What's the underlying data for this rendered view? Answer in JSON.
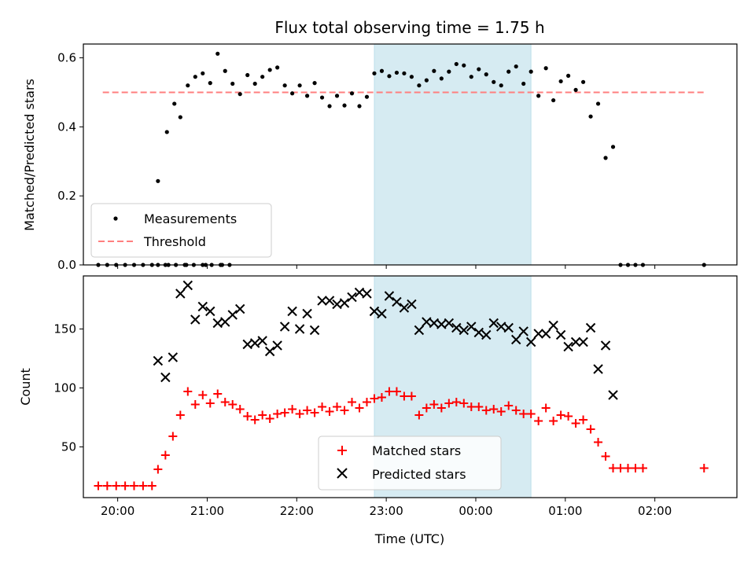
{
  "chart_data": [
    {
      "type": "scatter",
      "title": "Flux total observing time = 1.75 h",
      "xlabel": "",
      "ylabel": "Matched/Predicted stars",
      "xlim": [
        "19:37",
        "02:55"
      ],
      "ylim": [
        0,
        0.64
      ],
      "yticks": [
        0.0,
        0.2,
        0.4,
        0.6
      ],
      "ytick_labels": [
        "0.0",
        "0.2",
        "0.4",
        "0.6"
      ],
      "shaded_span": [
        "22:52",
        "00:37"
      ],
      "threshold": {
        "y": 0.5,
        "x_range": [
          "19:50",
          "02:33"
        ],
        "color": "#ff7f7f"
      },
      "legend": {
        "placement": "lower-left",
        "entries": [
          "Measurements",
          "Threshold"
        ]
      },
      "series": [
        {
          "name": "Measurements",
          "marker": "dot",
          "color": "#000000",
          "points": [
            [
              "19:47",
              0.0
            ],
            [
              "19:53",
              0.0
            ],
            [
              "19:59",
              0.0
            ],
            [
              "20:05",
              0.0
            ],
            [
              "20:11",
              0.0
            ],
            [
              "20:17",
              0.0
            ],
            [
              "20:23",
              0.0
            ],
            [
              "20:27",
              0.0
            ],
            [
              "20:32",
              0.0
            ],
            [
              "20:34",
              0.0
            ],
            [
              "20:39",
              0.0
            ],
            [
              "20:45",
              0.0
            ],
            [
              "20:46",
              0.0
            ],
            [
              "20:51",
              0.0
            ],
            [
              "20:57",
              0.0
            ],
            [
              "20:59",
              0.0
            ],
            [
              "21:03",
              0.0
            ],
            [
              "21:09",
              0.0
            ],
            [
              "21:10",
              0.0
            ],
            [
              "21:15",
              0.0
            ],
            [
              "20:27",
              0.243
            ],
            [
              "20:33",
              0.385
            ],
            [
              "20:38",
              0.467
            ],
            [
              "20:42",
              0.428
            ],
            [
              "20:47",
              0.52
            ],
            [
              "20:52",
              0.545
            ],
            [
              "20:57",
              0.555
            ],
            [
              "21:02",
              0.527
            ],
            [
              "21:07",
              0.612
            ],
            [
              "21:12",
              0.562
            ],
            [
              "21:17",
              0.525
            ],
            [
              "21:22",
              0.495
            ],
            [
              "21:27",
              0.55
            ],
            [
              "21:32",
              0.525
            ],
            [
              "21:37",
              0.545
            ],
            [
              "21:42",
              0.565
            ],
            [
              "21:47",
              0.572
            ],
            [
              "21:52",
              0.52
            ],
            [
              "21:57",
              0.497
            ],
            [
              "22:02",
              0.52
            ],
            [
              "22:07",
              0.49
            ],
            [
              "22:12",
              0.527
            ],
            [
              "22:17",
              0.485
            ],
            [
              "22:22",
              0.46
            ],
            [
              "22:27",
              0.49
            ],
            [
              "22:32",
              0.462
            ],
            [
              "22:37",
              0.497
            ],
            [
              "22:42",
              0.46
            ],
            [
              "22:47",
              0.487
            ],
            [
              "22:52",
              0.555
            ],
            [
              "22:57",
              0.562
            ],
            [
              "23:02",
              0.547
            ],
            [
              "23:07",
              0.557
            ],
            [
              "23:12",
              0.555
            ],
            [
              "23:17",
              0.545
            ],
            [
              "23:22",
              0.52
            ],
            [
              "23:27",
              0.535
            ],
            [
              "23:32",
              0.562
            ],
            [
              "23:37",
              0.54
            ],
            [
              "23:42",
              0.56
            ],
            [
              "23:47",
              0.582
            ],
            [
              "23:52",
              0.578
            ],
            [
              "23:57",
              0.545
            ],
            [
              "00:02",
              0.567
            ],
            [
              "00:07",
              0.552
            ],
            [
              "00:12",
              0.53
            ],
            [
              "00:17",
              0.52
            ],
            [
              "00:22",
              0.56
            ],
            [
              "00:27",
              0.575
            ],
            [
              "00:32",
              0.525
            ],
            [
              "00:37",
              0.56
            ],
            [
              "00:42",
              0.49
            ],
            [
              "00:47",
              0.57
            ],
            [
              "00:52",
              0.477
            ],
            [
              "00:57",
              0.532
            ],
            [
              "01:02",
              0.548
            ],
            [
              "01:07",
              0.507
            ],
            [
              "01:12",
              0.53
            ],
            [
              "01:17",
              0.43
            ],
            [
              "01:22",
              0.467
            ],
            [
              "01:27",
              0.31
            ],
            [
              "01:32",
              0.342
            ],
            [
              "01:37",
              0.0
            ],
            [
              "01:42",
              0.0
            ],
            [
              "01:47",
              0.0
            ],
            [
              "01:52",
              0.0
            ],
            [
              "02:33",
              0.0
            ]
          ]
        }
      ]
    },
    {
      "type": "scatter",
      "title": "",
      "xlabel": "Time (UTC)",
      "ylabel": "Count",
      "xlim": [
        "19:37",
        "02:55"
      ],
      "ylim": [
        7,
        195
      ],
      "yticks": [
        50,
        100,
        150
      ],
      "ytick_labels": [
        "50",
        "100",
        "150"
      ],
      "xticks": [
        "20:00",
        "21:00",
        "22:00",
        "23:00",
        "00:00",
        "01:00",
        "02:00"
      ],
      "shaded_span": [
        "22:52",
        "00:37"
      ],
      "legend": {
        "placement": "lower-center",
        "entries": [
          "Matched stars",
          "Predicted stars"
        ]
      },
      "series": [
        {
          "name": "Matched stars",
          "marker": "plus",
          "color": "#ff0000",
          "points": [
            [
              "19:47",
              17
            ],
            [
              "19:53",
              17
            ],
            [
              "19:59",
              17
            ],
            [
              "20:05",
              17
            ],
            [
              "20:11",
              17
            ],
            [
              "20:17",
              17
            ],
            [
              "20:23",
              17
            ],
            [
              "20:27",
              31
            ],
            [
              "20:32",
              43
            ],
            [
              "20:37",
              59
            ],
            [
              "20:42",
              77
            ],
            [
              "20:47",
              97
            ],
            [
              "20:52",
              86
            ],
            [
              "20:57",
              94
            ],
            [
              "21:02",
              87
            ],
            [
              "21:07",
              95
            ],
            [
              "21:12",
              88
            ],
            [
              "21:17",
              86
            ],
            [
              "21:22",
              82
            ],
            [
              "21:27",
              76
            ],
            [
              "21:32",
              73
            ],
            [
              "21:37",
              77
            ],
            [
              "21:42",
              74
            ],
            [
              "21:47",
              78
            ],
            [
              "21:52",
              79
            ],
            [
              "21:57",
              82
            ],
            [
              "22:02",
              78
            ],
            [
              "22:07",
              81
            ],
            [
              "22:12",
              79
            ],
            [
              "22:17",
              84
            ],
            [
              "22:22",
              80
            ],
            [
              "22:27",
              84
            ],
            [
              "22:32",
              81
            ],
            [
              "22:37",
              88
            ],
            [
              "22:42",
              83
            ],
            [
              "22:47",
              88
            ],
            [
              "22:52",
              91
            ],
            [
              "22:57",
              92
            ],
            [
              "23:02",
              97
            ],
            [
              "23:07",
              97
            ],
            [
              "23:12",
              93
            ],
            [
              "23:17",
              93
            ],
            [
              "23:22",
              77
            ],
            [
              "23:27",
              83
            ],
            [
              "23:32",
              86
            ],
            [
              "23:37",
              83
            ],
            [
              "23:42",
              87
            ],
            [
              "23:47",
              88
            ],
            [
              "23:52",
              87
            ],
            [
              "23:57",
              84
            ],
            [
              "00:02",
              84
            ],
            [
              "00:07",
              81
            ],
            [
              "00:12",
              82
            ],
            [
              "00:17",
              80
            ],
            [
              "00:22",
              85
            ],
            [
              "00:27",
              81
            ],
            [
              "00:32",
              78
            ],
            [
              "00:37",
              78
            ],
            [
              "00:42",
              72
            ],
            [
              "00:47",
              83
            ],
            [
              "00:52",
              72
            ],
            [
              "00:57",
              77
            ],
            [
              "01:02",
              76
            ],
            [
              "01:07",
              70
            ],
            [
              "01:12",
              73
            ],
            [
              "01:17",
              65
            ],
            [
              "01:22",
              54
            ],
            [
              "01:27",
              42
            ],
            [
              "01:32",
              32
            ],
            [
              "01:37",
              32
            ],
            [
              "01:42",
              32
            ],
            [
              "01:47",
              32
            ],
            [
              "01:52",
              32
            ],
            [
              "02:33",
              32
            ]
          ]
        },
        {
          "name": "Predicted stars",
          "marker": "x",
          "color": "#000000",
          "points": [
            [
              "20:27",
              123
            ],
            [
              "20:32",
              109
            ],
            [
              "20:37",
              126
            ],
            [
              "20:42",
              180
            ],
            [
              "20:47",
              187
            ],
            [
              "20:52",
              158
            ],
            [
              "20:57",
              169
            ],
            [
              "21:02",
              165
            ],
            [
              "21:07",
              155
            ],
            [
              "21:12",
              156
            ],
            [
              "21:17",
              162
            ],
            [
              "21:22",
              167
            ],
            [
              "21:27",
              137
            ],
            [
              "21:32",
              138
            ],
            [
              "21:37",
              140
            ],
            [
              "21:42",
              131
            ],
            [
              "21:47",
              136
            ],
            [
              "21:52",
              152
            ],
            [
              "21:57",
              165
            ],
            [
              "22:02",
              150
            ],
            [
              "22:07",
              163
            ],
            [
              "22:12",
              149
            ],
            [
              "22:17",
              174
            ],
            [
              "22:22",
              174
            ],
            [
              "22:27",
              171
            ],
            [
              "22:32",
              172
            ],
            [
              "22:37",
              177
            ],
            [
              "22:42",
              181
            ],
            [
              "22:47",
              180
            ],
            [
              "22:52",
              165
            ],
            [
              "22:57",
              163
            ],
            [
              "23:02",
              178
            ],
            [
              "23:07",
              173
            ],
            [
              "23:12",
              168
            ],
            [
              "23:17",
              171
            ],
            [
              "23:22",
              149
            ],
            [
              "23:27",
              156
            ],
            [
              "23:32",
              155
            ],
            [
              "23:37",
              154
            ],
            [
              "23:42",
              155
            ],
            [
              "23:47",
              151
            ],
            [
              "23:52",
              149
            ],
            [
              "23:57",
              152
            ],
            [
              "00:02",
              147
            ],
            [
              "00:07",
              145
            ],
            [
              "00:12",
              155
            ],
            [
              "00:17",
              152
            ],
            [
              "00:22",
              151
            ],
            [
              "00:27",
              141
            ],
            [
              "00:32",
              148
            ],
            [
              "00:37",
              139
            ],
            [
              "00:42",
              146
            ],
            [
              "00:47",
              146
            ],
            [
              "00:52",
              153
            ],
            [
              "00:57",
              145
            ],
            [
              "01:02",
              135
            ],
            [
              "01:07",
              139
            ],
            [
              "01:12",
              139
            ],
            [
              "01:17",
              151
            ],
            [
              "01:22",
              116
            ],
            [
              "01:27",
              136
            ],
            [
              "01:32",
              94
            ]
          ]
        }
      ]
    }
  ]
}
